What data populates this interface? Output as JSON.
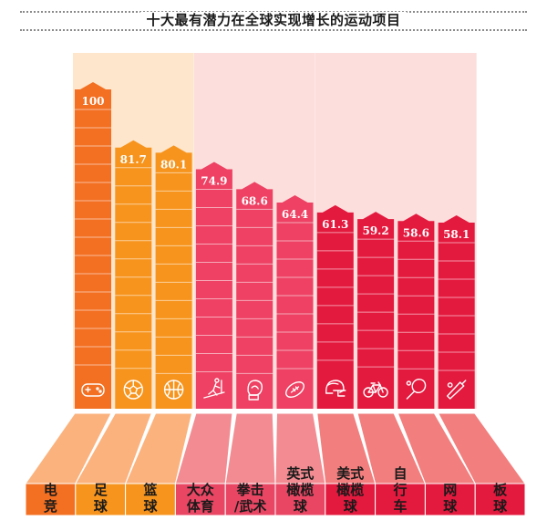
{
  "title": "十大最有潜力在全球实现增长的运动项目",
  "colors": {
    "bg_group_1": "#fde6cc",
    "bg_group_2": "#fcdedc",
    "bottom_light": [
      "#fbb27d",
      "#fbb27d",
      "#fbb27d",
      "#f28c92",
      "#f28c92",
      "#f28c92",
      "#f27e7e",
      "#f27e7e",
      "#f27e7e",
      "#f27e7e"
    ],
    "bottom_dark": [
      "#f36f21",
      "#f7941d",
      "#f7941d",
      "#e94663",
      "#e94663",
      "#e94663",
      "#e4193e",
      "#e4193e",
      "#e4193e",
      "#e4193e"
    ],
    "bar_colors": [
      "#f36f21",
      "#f7941d",
      "#f7941d",
      "#ee4163",
      "#ee4163",
      "#ee4163",
      "#e4193e",
      "#e4193e",
      "#e4193e",
      "#e4193e"
    ],
    "label_color": "#1a1a1a",
    "value_color": "#ffffff"
  },
  "chart_data": {
    "type": "bar",
    "title": "十大最有潜力在全球实现增长的运动项目",
    "categories": [
      "电竞",
      "足球",
      "篮球",
      "大众体育",
      "拳击/武术",
      "英式橄榄球",
      "美式橄榄球",
      "自行车",
      "网球",
      "板球"
    ],
    "category_lines": [
      [
        "电",
        "竞"
      ],
      [
        "足",
        "球"
      ],
      [
        "篮",
        "球"
      ],
      [
        "大众",
        "体育"
      ],
      [
        "拳击",
        "/武术"
      ],
      [
        "英式",
        "橄榄",
        "球"
      ],
      [
        "美式",
        "橄榄",
        "球"
      ],
      [
        "自",
        "行",
        "车"
      ],
      [
        "网",
        "球"
      ],
      [
        "板",
        "球"
      ]
    ],
    "values": [
      100,
      81.7,
      80.1,
      74.9,
      68.6,
      64.4,
      61.3,
      59.2,
      58.6,
      58.1
    ],
    "value_labels": [
      "100",
      "81.7",
      "80.1",
      "74.9",
      "68.6",
      "64.4",
      "61.3",
      "59.2",
      "58.6",
      "58.1"
    ],
    "icons": [
      "gamepad-icon",
      "soccer-ball-icon",
      "basketball-icon",
      "treadmill-runner-icon",
      "boxing-glove-icon",
      "rugby-ball-icon",
      "football-helmet-icon",
      "bicycle-icon",
      "tennis-racket-icon",
      "cricket-bat-icon"
    ],
    "groups": [
      [
        0,
        2
      ],
      [
        3,
        5
      ],
      [
        6,
        9
      ]
    ],
    "ylim": [
      0,
      100
    ],
    "xlabel": "",
    "ylabel": ""
  }
}
